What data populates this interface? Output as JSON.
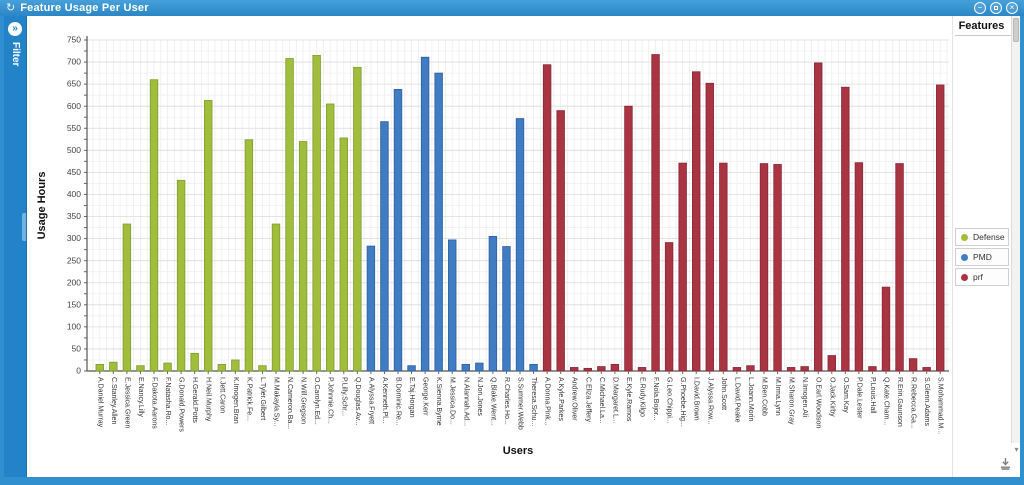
{
  "window": {
    "title": "Feature Usage Per User"
  },
  "icons": {
    "app": "↻",
    "minimize": "−",
    "close": "×",
    "expand": "»",
    "scroll_down": "▾"
  },
  "sidebar": {
    "label": "Filter"
  },
  "features_panel": {
    "title": "Features"
  },
  "chart_data": {
    "type": "bar",
    "title": "Feature Usage Per User",
    "xlabel": "Users",
    "ylabel": "Usage Hours",
    "ylim": [
      0,
      750
    ],
    "ytick_step": 50,
    "grid": true,
    "legend_position": "right",
    "series": [
      {
        "name": "Defense",
        "color": "#a0bd3c",
        "stroke": "#7f9c2e"
      },
      {
        "name": "PMD",
        "color": "#3f7cc4",
        "stroke": "#2f5f9c"
      },
      {
        "name": "prf",
        "color": "#a93442",
        "stroke": "#882836"
      }
    ],
    "points": [
      {
        "user": "A.Daniel.Murray",
        "feature": "Defense",
        "value": 15
      },
      {
        "user": "C.Stanley.Allen",
        "feature": "Defense",
        "value": 20
      },
      {
        "user": "E.Jessica.Green",
        "feature": "Defense",
        "value": 333
      },
      {
        "user": "E.Nancy.Lilly",
        "feature": "Defense",
        "value": 12
      },
      {
        "user": "F.Dakota.Aarons",
        "feature": "Defense",
        "value": 660
      },
      {
        "user": "F.Natasha.Ro...",
        "feature": "Defense",
        "value": 18
      },
      {
        "user": "G.Donald.Powers",
        "feature": "Defense",
        "value": 432
      },
      {
        "user": "H.Gerald.Potts",
        "feature": "Defense",
        "value": 40
      },
      {
        "user": "H.Neil.Murphy",
        "feature": "Defense",
        "value": 613
      },
      {
        "user": "I.Jett.Caron",
        "feature": "Defense",
        "value": 15
      },
      {
        "user": "K.Imogen.Bran",
        "feature": "Defense",
        "value": 25
      },
      {
        "user": "K.Patrick.Fe...",
        "feature": "Defense",
        "value": 524
      },
      {
        "user": "L.Tyler.Gilbert",
        "feature": "Defense",
        "value": 12
      },
      {
        "user": "M.Makayla.Sy...",
        "feature": "Defense",
        "value": 333
      },
      {
        "user": "N.Cameron.Ba...",
        "feature": "Defense",
        "value": 708
      },
      {
        "user": "N.Will.Gregson",
        "feature": "Defense",
        "value": 520
      },
      {
        "user": "O.Carolyn.Ed...",
        "feature": "Defense",
        "value": 715
      },
      {
        "user": "P.Johnnie.Ch...",
        "feature": "Defense",
        "value": 605
      },
      {
        "user": "P.Lilly.Schr...",
        "feature": "Defense",
        "value": 528
      },
      {
        "user": "Q.Douglas.Av...",
        "feature": "Defense",
        "value": 688
      },
      {
        "user": "A.Alyssa.Fryett",
        "feature": "PMD",
        "value": 283
      },
      {
        "user": "A.Kenneth.Pl...",
        "feature": "PMD",
        "value": 565
      },
      {
        "user": "B.Dominic.Re...",
        "feature": "PMD",
        "value": 638
      },
      {
        "user": "E.Taj.Horgan",
        "feature": "PMD",
        "value": 12
      },
      {
        "user": "George.Kerr",
        "feature": "PMD",
        "value": 711
      },
      {
        "user": "K.Sienna.Byrne",
        "feature": "PMD",
        "value": 675
      },
      {
        "user": "M.Jessica.Do...",
        "feature": "PMD",
        "value": 297
      },
      {
        "user": "N.Alannah.Ad...",
        "feature": "PMD",
        "value": 15
      },
      {
        "user": "N.Jon.Jones",
        "feature": "PMD",
        "value": 18
      },
      {
        "user": "Q.Blake.Went...",
        "feature": "PMD",
        "value": 305
      },
      {
        "user": "R.Charles.Ho...",
        "feature": "PMD",
        "value": 282
      },
      {
        "user": "S.Summer.Webb",
        "feature": "PMD",
        "value": 572
      },
      {
        "user": "Theresa.Schu...",
        "feature": "PMD",
        "value": 15
      },
      {
        "user": "A.Donna.Pink...",
        "feature": "prf",
        "value": 694
      },
      {
        "user": "A.Kyle.Parkes",
        "feature": "prf",
        "value": 590
      },
      {
        "user": "Andrew.Oliver",
        "feature": "prf",
        "value": 8
      },
      {
        "user": "C.Eliza.Jeffery",
        "feature": "prf",
        "value": 6
      },
      {
        "user": "C.Michael.La...",
        "feature": "prf",
        "value": 10
      },
      {
        "user": "D.Margaret.L...",
        "feature": "prf",
        "value": 15
      },
      {
        "user": "E.Kyle.Ramos",
        "feature": "prf",
        "value": 600
      },
      {
        "user": "E.Rudy.Kilgo",
        "feature": "prf",
        "value": 8
      },
      {
        "user": "F.Nola.Bojor...",
        "feature": "prf",
        "value": 717
      },
      {
        "user": "G.Leo.Chippi...",
        "feature": "prf",
        "value": 291
      },
      {
        "user": "G.Phoebe.Hig...",
        "feature": "prf",
        "value": 471
      },
      {
        "user": "I.David.Brown",
        "feature": "prf",
        "value": 678
      },
      {
        "user": "J.Alyssa.Row...",
        "feature": "prf",
        "value": 652
      },
      {
        "user": "John.Scott",
        "feature": "prf",
        "value": 471
      },
      {
        "user": "L.David.Peake",
        "feature": "prf",
        "value": 8
      },
      {
        "user": "L.Joann.Morin",
        "feature": "prf",
        "value": 12
      },
      {
        "user": "M.Ben.Cobb",
        "feature": "prf",
        "value": 470
      },
      {
        "user": "M.Irma.Lynn",
        "feature": "prf",
        "value": 468
      },
      {
        "user": "M.Sharon.Gray",
        "feature": "prf",
        "value": 8
      },
      {
        "user": "N.Imogen.Ali",
        "feature": "prf",
        "value": 10
      },
      {
        "user": "O.Earl.Woodson",
        "feature": "prf",
        "value": 698
      },
      {
        "user": "O.Jack.Kirby",
        "feature": "prf",
        "value": 35
      },
      {
        "user": "O.Sam.Kay",
        "feature": "prf",
        "value": 643
      },
      {
        "user": "P.Dale.Lester",
        "feature": "prf",
        "value": 472
      },
      {
        "user": "P.Louis.Hall",
        "feature": "prf",
        "value": 10
      },
      {
        "user": "Q.Kate.Cham...",
        "feature": "prf",
        "value": 190
      },
      {
        "user": "R.Erin.Gaunson",
        "feature": "prf",
        "value": 470
      },
      {
        "user": "R.Rebecca.Ga...",
        "feature": "prf",
        "value": 28
      },
      {
        "user": "S.Glenn.Adams",
        "feature": "prf",
        "value": 8
      },
      {
        "user": "S.Mohammad.M...",
        "feature": "prf",
        "value": 648
      }
    ]
  }
}
